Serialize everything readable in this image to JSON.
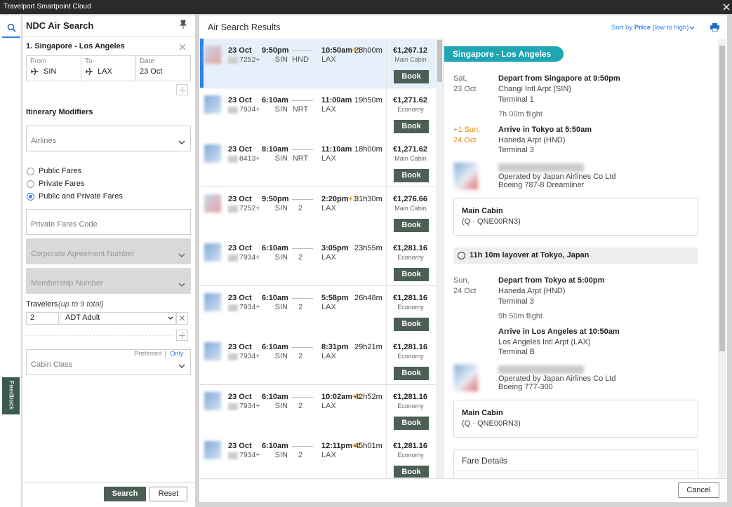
{
  "window": {
    "title": "Travelport Smartpoint Cloud"
  },
  "sidebar": {
    "feedback": "Feedback"
  },
  "search_panel": {
    "title": "NDC Air Search",
    "segment": "1. Singapore - Los Angeles",
    "from": {
      "label": "From",
      "value": "SIN"
    },
    "to": {
      "label": "To",
      "value": "LAX"
    },
    "date": {
      "label": "Date",
      "value": "23 Oct"
    },
    "modifiers_title": "Itinerary Modifiers",
    "airlines": "Airlines",
    "fare_options": [
      "Public Fares",
      "Private Fares",
      "Public and Private Fares"
    ],
    "selected_fare": 2,
    "private_fares_code": "Private Fares Code",
    "corporate_agreement": "Corporate Agreement Number",
    "membership": "Membership Number",
    "travelers_label": "Travelers",
    "travelers_note": "(up to 9 total)",
    "traveler_count": "2",
    "traveler_type": "ADT Adult",
    "preferred": "Preferred",
    "only": "Only",
    "cabin_class": "Cabin Class",
    "search_button": "Search",
    "reset_button": "Reset"
  },
  "results": {
    "title": "Air Search Results",
    "sort_prefix": "Sort by",
    "sort_field": "Price",
    "sort_order": "(low to high)",
    "book_label": "Book",
    "selected_row": 0,
    "rows": [
      {
        "date": "23 Oct",
        "depart": "9:50pm",
        "flight": "7252+",
        "origin": "SIN",
        "via": "HND",
        "arrive": "10:50am",
        "day_offset": "+1",
        "destination": "LAX",
        "duration": "28h00m",
        "price": "€1,267.12",
        "cabin": "Main Cabin"
      },
      {
        "date": "23 Oct",
        "depart": "6:10am",
        "flight": "7934+",
        "origin": "SIN",
        "via": "NRT",
        "arrive": "11:00am",
        "day_offset": null,
        "destination": "LAX",
        "duration": "19h50m",
        "price": "€1,271.62",
        "cabin": "Economy"
      },
      {
        "date": "23 Oct",
        "depart": "8:10am",
        "flight": "8413+",
        "origin": "SIN",
        "via": "NRT",
        "arrive": "11:10am",
        "day_offset": null,
        "destination": "LAX",
        "duration": "18h00m",
        "price": "€1,271.62",
        "cabin": "Main Cabin"
      },
      {
        "date": "23 Oct",
        "depart": "9:50pm",
        "flight": "7252+",
        "origin": "SIN",
        "via": "2",
        "arrive": "2:20pm",
        "day_offset": "+1",
        "destination": "LAX",
        "duration": "31h30m",
        "price": "€1,276.66",
        "cabin": "Main Cabin"
      },
      {
        "date": "23 Oct",
        "depart": "6:10am",
        "flight": "7934+",
        "origin": "SIN",
        "via": "2",
        "arrive": "3:05pm",
        "day_offset": null,
        "destination": "LAX",
        "duration": "23h55m",
        "price": "€1,281.16",
        "cabin": "Economy"
      },
      {
        "date": "23 Oct",
        "depart": "6:10am",
        "flight": "7934+",
        "origin": "SIN",
        "via": "2",
        "arrive": "5:58pm",
        "day_offset": null,
        "destination": "LAX",
        "duration": "26h48m",
        "price": "€1,281.16",
        "cabin": "Economy"
      },
      {
        "date": "23 Oct",
        "depart": "6:10am",
        "flight": "7934+",
        "origin": "SIN",
        "via": "2",
        "arrive": "8:31pm",
        "day_offset": null,
        "destination": "LAX",
        "duration": "29h21m",
        "price": "€1,281.16",
        "cabin": "Economy"
      },
      {
        "date": "23 Oct",
        "depart": "6:10am",
        "flight": "7934+",
        "origin": "SIN",
        "via": "2",
        "arrive": "10:02am",
        "day_offset": "+1",
        "destination": "LAX",
        "duration": "42h52m",
        "price": "€1,281.16",
        "cabin": "Economy"
      },
      {
        "date": "23 Oct",
        "depart": "6:10am",
        "flight": "7934+",
        "origin": "SIN",
        "via": "2",
        "arrive": "12:11pm",
        "day_offset": "+1",
        "destination": "LAX",
        "duration": "45h01m",
        "price": "€1,281.16",
        "cabin": "Economy"
      }
    ]
  },
  "details": {
    "route": "Singapore - Los Angeles",
    "segments": [
      {
        "depart_day": "Sat,",
        "depart_date": "23 Oct",
        "depart": "Depart from Singapore at 9:50pm",
        "depart_airport": "Changi Intl Arpt (SIN)",
        "depart_terminal": "Terminal 1",
        "flight_time": "7h 00m flight",
        "arrive_day": "+1 Sun,",
        "arrive_date": "24 Oct",
        "arrive": "Arrive in Tokyo at 5:50am",
        "arrive_airport": "Haneda Arpt (HND)",
        "arrive_terminal": "Terminal 3",
        "operated": "Operated by Japan Airlines Co Ltd",
        "aircraft": "Boeing 787-8 Dreamliner",
        "cabin": "Main Cabin",
        "fare_code": "(Q · QNE00RN3)"
      },
      {
        "depart_day": "Sun,",
        "depart_date": "24 Oct",
        "depart": "Depart from Tokyo at 5:00pm",
        "depart_airport": "Haneda Arpt (HND)",
        "depart_terminal": "Terminal 3",
        "flight_time": "9h 50m flight",
        "arrive_day": null,
        "arrive_date": null,
        "arrive": "Arrive in Los Angeles at 10:50am",
        "arrive_airport": "Los Angeles Intl Arpt (LAX)",
        "arrive_terminal": "Terminal B",
        "operated": "Operated by Japan Airlines Co Ltd",
        "aircraft": "Boeing 777-300",
        "cabin": "Main Cabin",
        "fare_code": "(Q · QNE00RN3)"
      }
    ],
    "layover": "11h 10m layover at Tokyo, Japan",
    "fare_details": "Fare Details",
    "cancel": "Cancel"
  }
}
